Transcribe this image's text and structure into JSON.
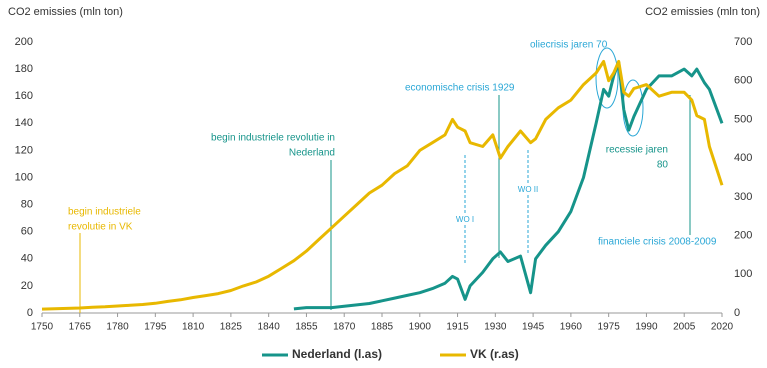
{
  "chart_data": {
    "type": "line",
    "y_label": "CO2 emissies  (mln ton)",
    "y2_label": "CO2 emissies  (mln ton)",
    "x": [
      1750,
      1755,
      1760,
      1765,
      1770,
      1775,
      1780,
      1785,
      1790,
      1795,
      1800,
      1805,
      1810,
      1815,
      1820,
      1825,
      1830,
      1835,
      1840,
      1845,
      1850,
      1855,
      1860,
      1865,
      1870,
      1875,
      1880,
      1885,
      1890,
      1895,
      1900,
      1905,
      1910,
      1913,
      1915,
      1918,
      1920,
      1925,
      1929,
      1932,
      1935,
      1940,
      1944,
      1946,
      1950,
      1955,
      1960,
      1965,
      1970,
      1973,
      1975,
      1977,
      1979,
      1981,
      1983,
      1985,
      1990,
      1995,
      2000,
      2005,
      2008,
      2010,
      2013,
      2015,
      2020
    ],
    "series": [
      {
        "name": "Nederland (l.as)",
        "color": "#16948a",
        "axis": "y",
        "values": [
          null,
          null,
          null,
          null,
          null,
          null,
          null,
          null,
          null,
          null,
          null,
          null,
          null,
          null,
          null,
          null,
          null,
          null,
          null,
          null,
          3,
          4,
          4,
          4,
          5,
          6,
          7,
          9,
          11,
          13,
          15,
          18,
          22,
          27,
          25,
          10,
          20,
          30,
          40,
          45,
          38,
          42,
          15,
          40,
          50,
          60,
          75,
          100,
          140,
          165,
          160,
          175,
          185,
          150,
          135,
          145,
          165,
          175,
          175,
          180,
          175,
          180,
          170,
          165,
          140
        ]
      },
      {
        "name": "VK (r.as)",
        "color": "#e8b800",
        "axis": "y2",
        "values": [
          10,
          11,
          12,
          13,
          15,
          16,
          18,
          20,
          22,
          25,
          30,
          34,
          40,
          45,
          50,
          58,
          70,
          80,
          95,
          115,
          135,
          160,
          190,
          220,
          250,
          280,
          310,
          330,
          360,
          380,
          420,
          440,
          460,
          500,
          480,
          470,
          440,
          430,
          460,
          400,
          430,
          470,
          440,
          450,
          500,
          530,
          550,
          590,
          620,
          650,
          600,
          620,
          650,
          570,
          560,
          580,
          590,
          560,
          570,
          570,
          550,
          510,
          500,
          430,
          330
        ]
      }
    ],
    "xlim": [
      1750,
      2020
    ],
    "xticks": [
      1750,
      1765,
      1780,
      1795,
      1810,
      1825,
      1840,
      1855,
      1870,
      1885,
      1900,
      1915,
      1930,
      1945,
      1960,
      1975,
      1990,
      2005,
      2020
    ],
    "ylim": [
      0,
      200
    ],
    "yticks": [
      0,
      20,
      40,
      60,
      80,
      100,
      120,
      140,
      160,
      180,
      200
    ],
    "y2lim": [
      0,
      700
    ],
    "y2ticks": [
      0,
      100,
      200,
      300,
      400,
      500,
      600,
      700
    ],
    "grid": false,
    "legend": "bottom",
    "annotations": [
      {
        "lines": [
          "begin industriele",
          "revolutie in VK"
        ]
      },
      {
        "lines": [
          "begin industriele  revolutie  in",
          "Nederland"
        ]
      },
      {
        "lines": [
          "economische  crisis 1929"
        ]
      },
      {
        "lines": [
          "WO I"
        ]
      },
      {
        "lines": [
          "WO II"
        ]
      },
      {
        "lines": [
          "oliecrisis  jaren  70"
        ]
      },
      {
        "lines": [
          "recessie  jaren",
          "80"
        ]
      },
      {
        "lines": [
          "financiele  crisis  2008-2009"
        ]
      }
    ]
  }
}
